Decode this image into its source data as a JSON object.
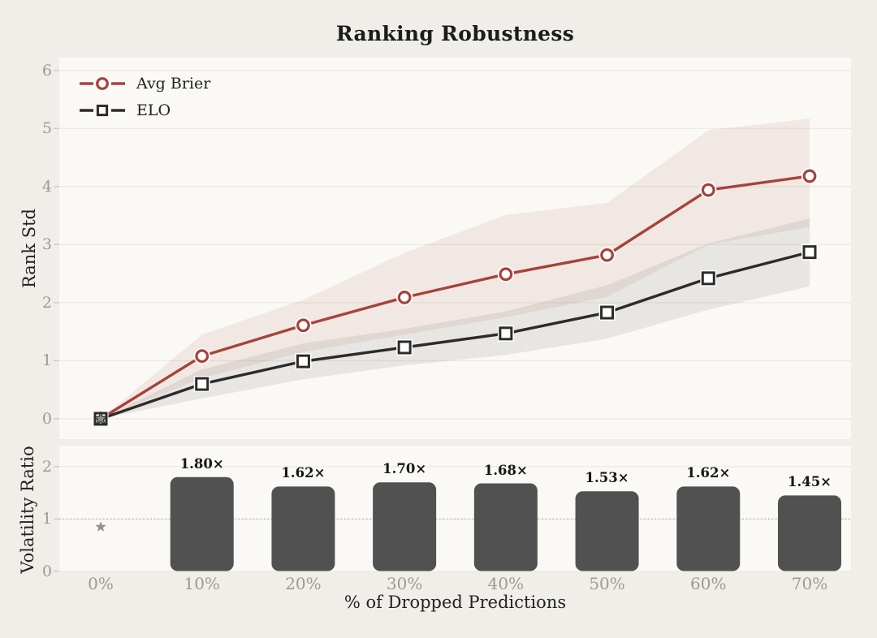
{
  "figure": {
    "background": "#f0eee8",
    "plot_background": "#faf9f5",
    "grid_color": "#ebe9e2",
    "tick_color": "#c9c7c1",
    "tick_label_color": "#9b9a95",
    "text_color": "#1c1c1c",
    "axis_label_color": "#222222"
  },
  "chart_data": [
    {
      "type": "line",
      "title": "Ranking Robustness",
      "ylabel": "Rank Std",
      "categories": [
        "0%",
        "10%",
        "20%",
        "30%",
        "40%",
        "50%",
        "60%",
        "70%"
      ],
      "ylim": [
        -0.35,
        6.22
      ],
      "yticks": [
        0,
        1,
        2,
        3,
        4,
        5,
        6
      ],
      "grid": "horizontal",
      "legend_position": "upper-left",
      "origin_marker": "star",
      "origin_marker_color": "#8f8d89",
      "series": [
        {
          "name": "Avg Brier",
          "marker": "circle",
          "color": "#a7423c",
          "values": [
            0,
            1.08,
            1.61,
            2.09,
            2.49,
            2.82,
            3.94,
            4.18
          ],
          "band_upper": [
            0,
            1.45,
            2.05,
            2.86,
            3.51,
            3.72,
            4.97,
            5.17
          ],
          "band_lower": [
            0,
            0.7,
            1.15,
            1.45,
            1.75,
            2.1,
            3.0,
            3.3
          ],
          "band_color": "rgba(167,66,60,0.09)"
        },
        {
          "name": "ELO",
          "marker": "square",
          "color": "#2d2a2a",
          "values": [
            0,
            0.6,
            0.99,
            1.23,
            1.47,
            1.83,
            2.42,
            2.87
          ],
          "band_upper": [
            0,
            0.85,
            1.3,
            1.55,
            1.85,
            2.3,
            3.02,
            3.45
          ],
          "band_lower": [
            0,
            0.35,
            0.68,
            0.92,
            1.1,
            1.38,
            1.88,
            2.28
          ],
          "band_color": "rgba(72,68,64,0.10)"
        }
      ]
    },
    {
      "type": "bar",
      "ylabel": "Volatility Ratio",
      "xlabel": "% of Dropped Predictions",
      "categories": [
        "0%",
        "10%",
        "20%",
        "30%",
        "40%",
        "50%",
        "60%",
        "70%"
      ],
      "values": [
        null,
        1.8,
        1.62,
        1.7,
        1.68,
        1.53,
        1.62,
        1.45
      ],
      "bar_labels": [
        "",
        "1.80×",
        "1.62×",
        "1.70×",
        "1.68×",
        "1.53×",
        "1.62×",
        "1.45×"
      ],
      "ylim": [
        0,
        2.4
      ],
      "yticks": [
        0,
        1,
        2
      ],
      "grid": "horizontal",
      "reference_line": 1.0,
      "reference_line_style": "dotted",
      "reference_line_color": "#b3b1ac",
      "bar_color": "#515151",
      "star_point": {
        "category": "0%",
        "value": 0.85
      },
      "star_color": "#93918d"
    }
  ]
}
